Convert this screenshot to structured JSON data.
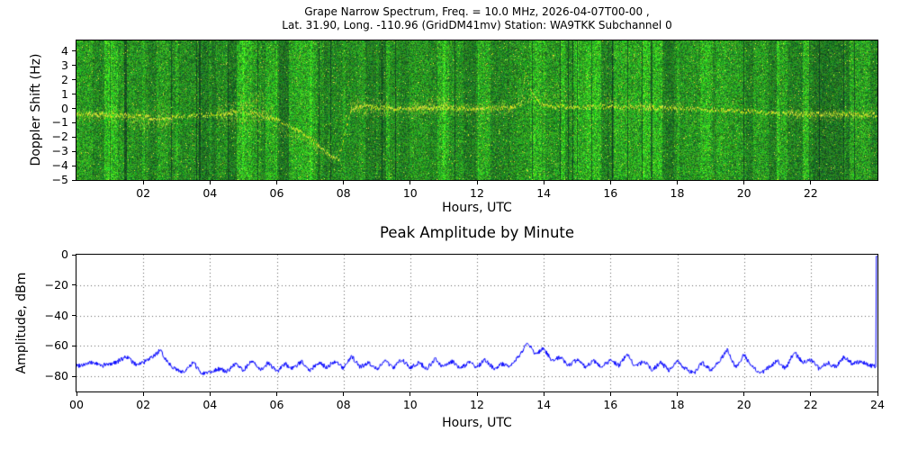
{
  "chart_data": [
    {
      "type": "heatmap",
      "name": "doppler-spectrogram",
      "title_lines": [
        "Grape Narrow Spectrum, Freq. = 10.0 MHz, 2026-04-07T00-00 ,",
        "Lat.  31.90, Long. -110.96 (GridDM41mv) Station: WA9TKK Subchannel 0"
      ],
      "xlabel": "Hours, UTC",
      "ylabel": "Doppler Shift (Hz)",
      "xlim": [
        0,
        24
      ],
      "ylim": [
        -5,
        4.75
      ],
      "xtick_values": [
        2,
        4,
        6,
        8,
        10,
        12,
        14,
        16,
        18,
        20,
        22
      ],
      "xtick_labels": [
        "02",
        "04",
        "06",
        "08",
        "10",
        "12",
        "14",
        "16",
        "18",
        "20",
        "22"
      ],
      "ytick_values": [
        4,
        3,
        2,
        1,
        0,
        -1,
        -2,
        -3,
        -4,
        -5
      ],
      "ytick_labels": [
        "4",
        "3",
        "2",
        "1",
        "0",
        "−1",
        "−2",
        "−3",
        "−4",
        "−5"
      ],
      "colors": {
        "noise_background": "#2fa02c",
        "trace": "#ffee33"
      },
      "description": "Green noisy spectrogram with a bright yellow Doppler trace near 0 Hz; excursions down to about -3.5 Hz near 07:30, an upward burst near 08:00-09:00, a spike to about +2.5 Hz near 13:30, scattered fuzz 13:30-17:00, thin quiet line 18:00-21:00, fuzzier line 21:00-24:00",
      "trace_line": [
        [
          0,
          -0.4
        ],
        [
          1.5,
          -0.5
        ],
        [
          2.5,
          -0.7
        ],
        [
          3.5,
          -0.5
        ],
        [
          4.5,
          -0.35
        ],
        [
          5.0,
          -0.2
        ],
        [
          5.5,
          -0.45
        ],
        [
          6.0,
          -0.8
        ],
        [
          6.5,
          -1.4
        ],
        [
          7.0,
          -2.1
        ],
        [
          7.5,
          -3.2
        ],
        [
          7.85,
          -3.6
        ],
        [
          8.0,
          -2.0
        ],
        [
          8.2,
          -0.3
        ],
        [
          8.5,
          0.2
        ],
        [
          9.0,
          0.05
        ],
        [
          10.0,
          0.0
        ],
        [
          11.0,
          0.1
        ],
        [
          12.0,
          0.0
        ],
        [
          13.0,
          0.05
        ],
        [
          13.3,
          0.3
        ],
        [
          13.45,
          2.4
        ],
        [
          13.6,
          1.3
        ],
        [
          13.8,
          0.5
        ],
        [
          14.0,
          0.2
        ],
        [
          15.0,
          0.1
        ],
        [
          16.0,
          0.1
        ],
        [
          17.0,
          0.05
        ],
        [
          18.0,
          0.0
        ],
        [
          19.0,
          -0.1
        ],
        [
          20.0,
          -0.2
        ],
        [
          21.0,
          -0.35
        ],
        [
          22.0,
          -0.4
        ],
        [
          23.0,
          -0.4
        ],
        [
          24.0,
          -0.45
        ]
      ],
      "trace_blobs": [
        [
          0.0,
          1.6,
          -0.45,
          -0.5,
          0.45,
          3
        ],
        [
          1.6,
          2.9,
          -0.6,
          -0.75,
          0.85,
          6
        ],
        [
          4.2,
          5.9,
          -0.35,
          -0.3,
          0.9,
          6
        ],
        [
          4.9,
          5.6,
          0.4,
          0.9,
          0.45,
          2
        ],
        [
          6.0,
          7.9,
          -1.2,
          -3.4,
          0.55,
          2
        ],
        [
          8.2,
          9.3,
          0.15,
          0.1,
          0.65,
          6
        ],
        [
          9.3,
          13.2,
          0.0,
          0.05,
          0.45,
          3
        ],
        [
          10.0,
          11.2,
          0.2,
          0.3,
          0.6,
          3
        ],
        [
          13.3,
          14.9,
          0.9,
          0.6,
          0.9,
          2
        ],
        [
          15.8,
          16.7,
          0.45,
          0.4,
          0.8,
          2
        ],
        [
          16.8,
          18.2,
          0.15,
          0.1,
          0.5,
          2
        ],
        [
          21.3,
          23.9,
          -0.4,
          -0.4,
          0.45,
          3
        ]
      ]
    },
    {
      "type": "line",
      "name": "peak-amplitude-by-minute",
      "title": "Peak Amplitude by Minute",
      "xlabel": "Hours, UTC",
      "ylabel": "Amplitude, dBm",
      "xlim": [
        0,
        24
      ],
      "ylim": [
        -90,
        0
      ],
      "xtick_values": [
        0,
        2,
        4,
        6,
        8,
        10,
        12,
        14,
        16,
        18,
        20,
        22,
        24
      ],
      "xtick_labels": [
        "00",
        "02",
        "04",
        "06",
        "08",
        "10",
        "12",
        "14",
        "16",
        "18",
        "20",
        "22",
        "24"
      ],
      "ytick_values": [
        0,
        -20,
        -40,
        -60,
        -80
      ],
      "ytick_labels": [
        "0",
        "−20",
        "−40",
        "−60",
        "−80"
      ],
      "grid": "dotted",
      "legend": "none",
      "line_color": "#0000ff",
      "sample_step_hours": 0.25,
      "values_dbm": [
        -73,
        -72,
        -71,
        -73,
        -72,
        -70,
        -67,
        -72,
        -71,
        -68,
        -63,
        -71,
        -76,
        -77,
        -71,
        -78,
        -77,
        -75,
        -77,
        -72,
        -76,
        -70,
        -76,
        -71,
        -77,
        -72,
        -75,
        -70,
        -76,
        -71,
        -74,
        -70,
        -75,
        -67,
        -74,
        -71,
        -75,
        -70,
        -74,
        -69,
        -74,
        -71,
        -75,
        -69,
        -74,
        -70,
        -75,
        -71,
        -74,
        -69,
        -75,
        -72,
        -73,
        -67,
        -58,
        -65,
        -62,
        -70,
        -67,
        -73,
        -69,
        -74,
        -70,
        -74,
        -69,
        -73,
        -65,
        -74,
        -70,
        -76,
        -71,
        -76,
        -70,
        -75,
        -78,
        -71,
        -76,
        -70,
        -63,
        -74,
        -66,
        -74,
        -78,
        -74,
        -70,
        -75,
        -64,
        -71,
        -69,
        -75,
        -71,
        -74,
        -67,
        -72,
        -70,
        -73,
        -1
      ]
    }
  ]
}
